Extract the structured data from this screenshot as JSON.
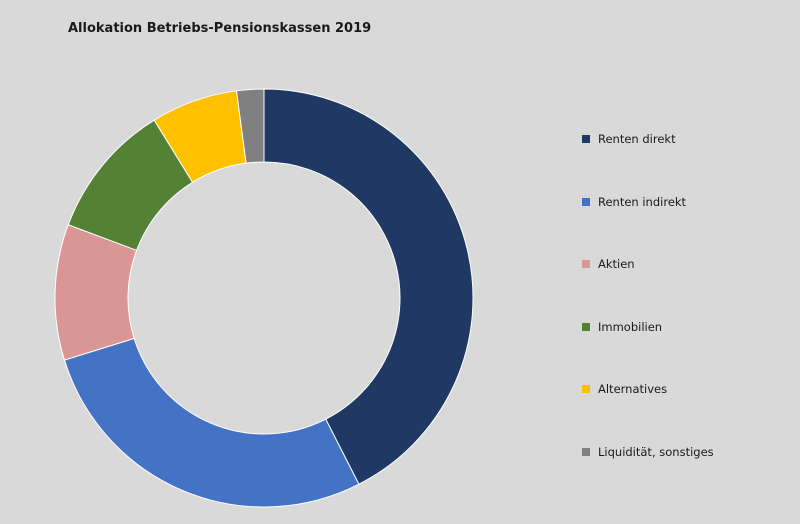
{
  "chart_data": {
    "type": "pie",
    "title": "Allokation Betriebs-Pensionskassen 2019",
    "legend_position": "right",
    "donut": true,
    "series": [
      {
        "name": "Renten direkt",
        "value": 42.5,
        "color": "#1f3864"
      },
      {
        "name": "Renten indirekt",
        "value": 27.7,
        "color": "#4472c4"
      },
      {
        "name": "Aktien",
        "value": 10.5,
        "color": "#d99694"
      },
      {
        "name": "Immobilien",
        "value": 10.5,
        "color": "#548235"
      },
      {
        "name": "Alternatives",
        "value": 6.7,
        "color": "#ffc000"
      },
      {
        "name": "Liquidität, sonstiges",
        "value": 2.1,
        "color": "#808080"
      }
    ]
  }
}
